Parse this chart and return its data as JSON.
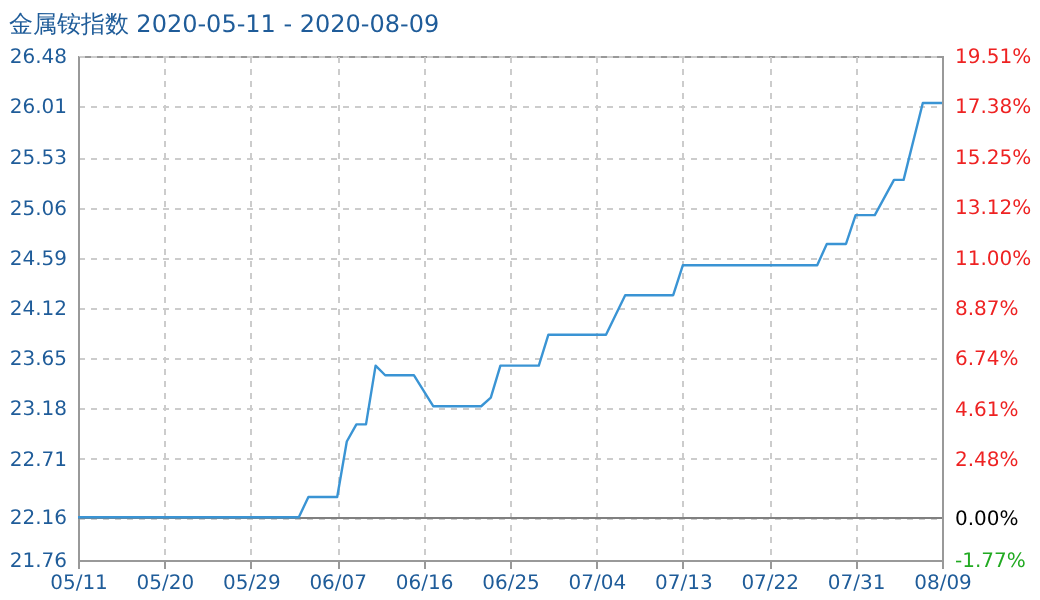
{
  "chart_data": {
    "type": "line",
    "title": "金属铵指数 2020-05-11 - 2020-08-09",
    "x": [
      "2020-05-11",
      "2020-06-03",
      "2020-06-04",
      "2020-06-07",
      "2020-06-08",
      "2020-06-09",
      "2020-06-10",
      "2020-06-11",
      "2020-06-12",
      "2020-06-15",
      "2020-06-17",
      "2020-06-22",
      "2020-06-23",
      "2020-06-24",
      "2020-06-28",
      "2020-06-29",
      "2020-07-05",
      "2020-07-07",
      "2020-07-12",
      "2020-07-13",
      "2020-07-27",
      "2020-07-28",
      "2020-07-30",
      "2020-07-31",
      "2020-08-02",
      "2020-08-04",
      "2020-08-05",
      "2020-08-07",
      "2020-08-09"
    ],
    "series": [
      {
        "color": "#3a94d4",
        "values": [
          22.16,
          22.16,
          22.35,
          22.35,
          22.87,
          23.03,
          23.03,
          23.58,
          23.49,
          23.49,
          23.2,
          23.2,
          23.28,
          23.58,
          23.58,
          23.87,
          23.87,
          24.24,
          24.24,
          24.52,
          24.52,
          24.72,
          24.72,
          24.99,
          24.99,
          25.32,
          25.32,
          26.04,
          26.04
        ]
      }
    ],
    "xlim": [
      "2020-05-11",
      "2020-08-09"
    ],
    "xticks": [
      {
        "value": "2020-05-11",
        "label": "05/11"
      },
      {
        "value": "2020-05-20",
        "label": "05/20"
      },
      {
        "value": "2020-05-29",
        "label": "05/29"
      },
      {
        "value": "2020-06-07",
        "label": "06/07"
      },
      {
        "value": "2020-06-16",
        "label": "06/16"
      },
      {
        "value": "2020-06-25",
        "label": "06/25"
      },
      {
        "value": "2020-07-04",
        "label": "07/04"
      },
      {
        "value": "2020-07-13",
        "label": "07/13"
      },
      {
        "value": "2020-07-22",
        "label": "07/22"
      },
      {
        "value": "2020-07-31",
        "label": "07/31"
      },
      {
        "value": "2020-08-09",
        "label": "08/09"
      }
    ],
    "ylim": [
      21.76,
      26.48
    ],
    "yticks": [
      21.76,
      22.16,
      22.71,
      23.18,
      23.65,
      24.12,
      24.59,
      25.06,
      25.53,
      26.01,
      26.48
    ],
    "y2lim": [
      -1.77,
      19.51
    ],
    "y2ticks": [
      {
        "value": -1.77,
        "label": "-1.77%"
      },
      {
        "value": 0,
        "label": "0.00%"
      },
      {
        "value": 2.48,
        "label": "2.48%"
      },
      {
        "value": 4.61,
        "label": "4.61%"
      },
      {
        "value": 6.74,
        "label": "6.74%"
      },
      {
        "value": 8.87,
        "label": "8.87%"
      },
      {
        "value": 11.0,
        "label": "11.00%"
      },
      {
        "value": 13.12,
        "label": "13.12%"
      },
      {
        "value": 15.25,
        "label": "15.25%"
      },
      {
        "value": 17.38,
        "label": "17.38%"
      },
      {
        "value": 19.51,
        "label": "19.51%"
      }
    ],
    "ref_lines": [
      {
        "axis": "y2",
        "value": 0,
        "color": "#808080",
        "line_style": "solid"
      }
    ],
    "grid": true,
    "marker": "none",
    "line_style": "solid"
  }
}
